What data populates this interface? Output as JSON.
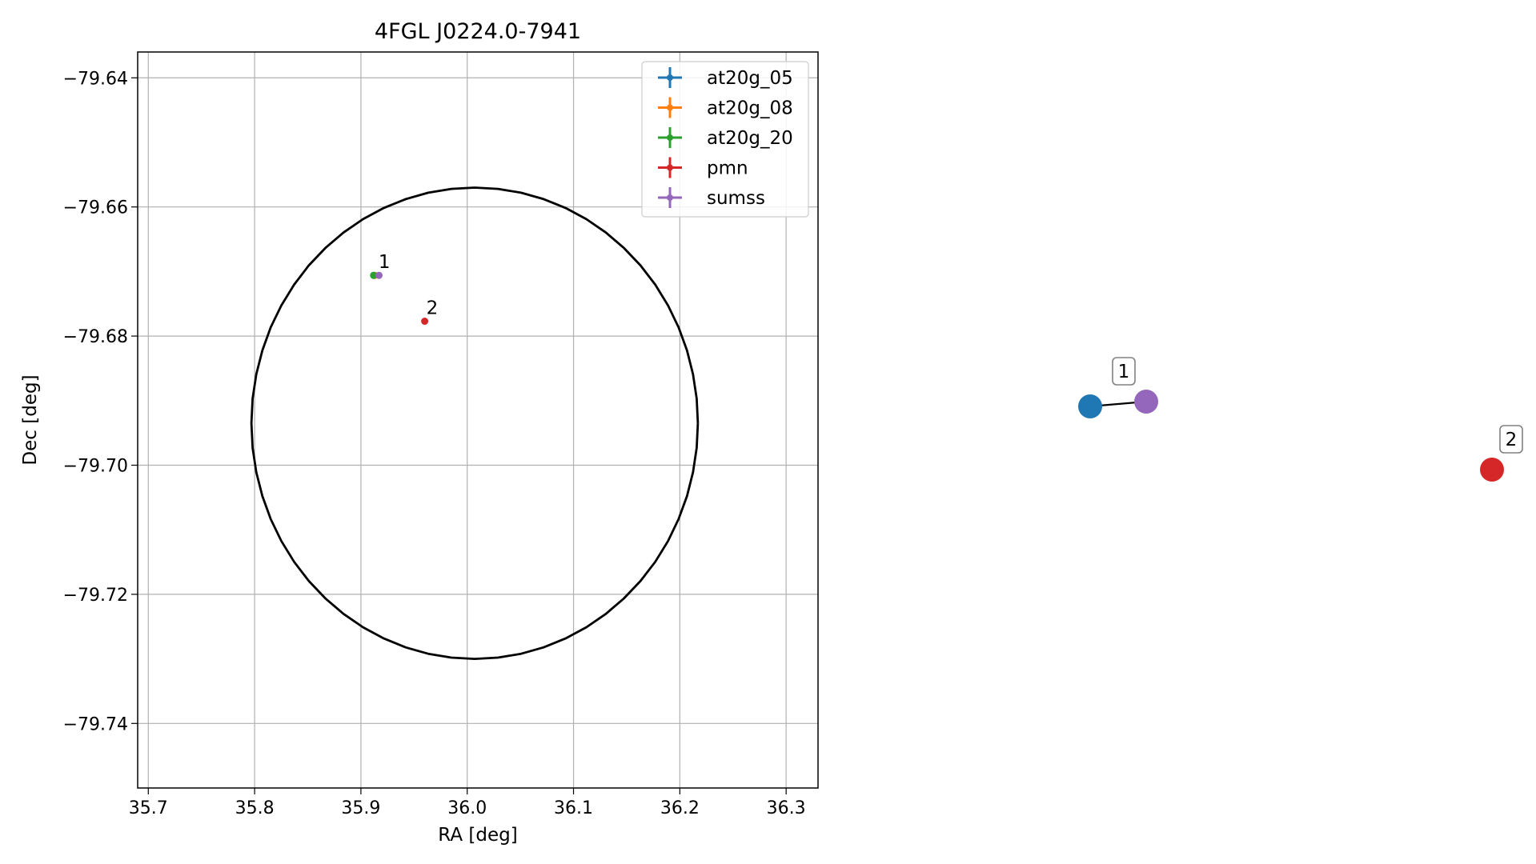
{
  "chart_data": [
    {
      "type": "scatter",
      "title": "4FGL J0224.0-7941",
      "xlabel": "RA [deg]",
      "ylabel": "Dec [deg]",
      "xlim": [
        35.69,
        36.33
      ],
      "ylim": [
        -79.75,
        -79.636
      ],
      "x_ticks": [
        35.7,
        35.8,
        35.9,
        36.0,
        36.1,
        36.2,
        36.3
      ],
      "x_tick_labels": [
        "35.7",
        "35.8",
        "35.9",
        "36.0",
        "36.1",
        "36.2",
        "36.3"
      ],
      "y_ticks": [
        -79.64,
        -79.66,
        -79.68,
        -79.7,
        -79.72,
        -79.74
      ],
      "y_tick_labels": [
        "−79.64",
        "−79.66",
        "−79.68",
        "−79.70",
        "−79.72",
        "−79.74"
      ],
      "grid": true,
      "legend_position": "top-right",
      "series": [
        {
          "name": "at20g_05",
          "color": "#1f77b4",
          "x": [
            35.912
          ],
          "y": [
            -79.6706
          ]
        },
        {
          "name": "at20g_08",
          "color": "#ff7f0e",
          "x": [
            35.913
          ],
          "y": [
            -79.6706
          ]
        },
        {
          "name": "at20g_20",
          "color": "#2ca02c",
          "x": [
            35.912
          ],
          "y": [
            -79.6706
          ]
        },
        {
          "name": "pmn",
          "color": "#d62728",
          "x": [
            35.96
          ],
          "y": [
            -79.6777
          ]
        },
        {
          "name": "sumss",
          "color": "#9467bd",
          "x": [
            35.917
          ],
          "y": [
            -79.6706
          ]
        }
      ],
      "ellipse": {
        "center_ra": 36.007,
        "center_dec": -79.6935,
        "semi_ra": 0.21,
        "semi_dec": 0.0365,
        "color": "#000000"
      },
      "annotations": [
        {
          "text": "1",
          "x": 35.915,
          "y": -79.6706
        },
        {
          "text": "2",
          "x": 35.96,
          "y": -79.6777
        }
      ]
    },
    {
      "type": "network",
      "nodes": [
        {
          "id": "at20g_05",
          "color": "#1f77b4"
        },
        {
          "id": "sumss",
          "color": "#9467bd"
        },
        {
          "id": "pmn",
          "color": "#d62728"
        }
      ],
      "edges": [
        [
          "at20g_05",
          "sumss"
        ]
      ],
      "labels": [
        {
          "text": "1",
          "node": "sumss"
        },
        {
          "text": "2",
          "node": "pmn"
        }
      ]
    }
  ]
}
